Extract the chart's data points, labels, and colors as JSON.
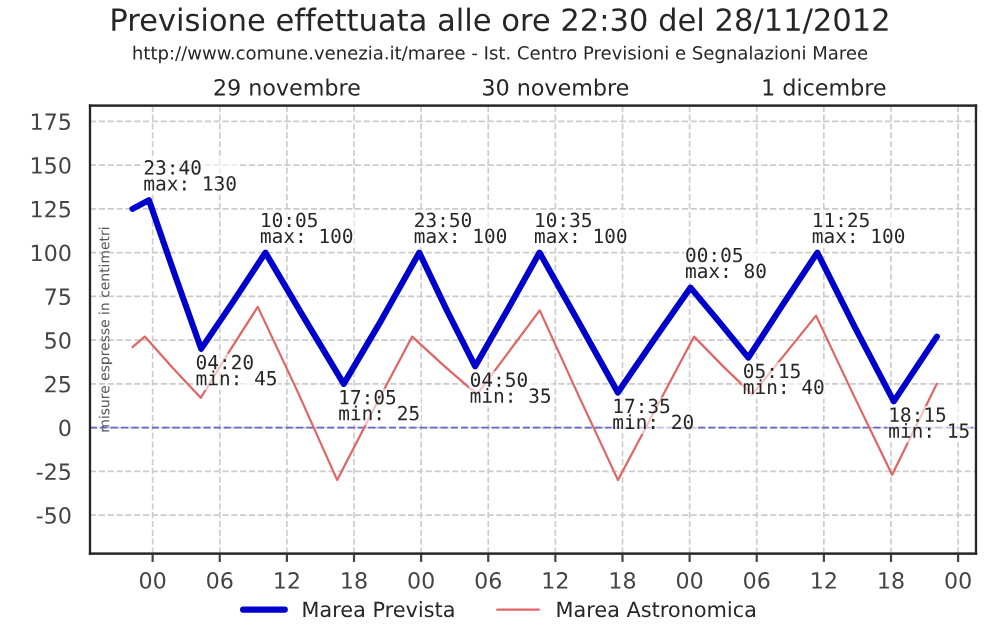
{
  "chart_data": {
    "type": "line",
    "title": "Previsione effettuata alle ore 22:30 del 28/11/2012",
    "subtitle": "http://www.comune.venezia.it/maree - Ist. Centro Previsioni e Segnalazioni Maree",
    "ylabel": "misure espresse in centimetri",
    "xlim": [
      "2012-11-28T18:24",
      "2012-12-02T01:36"
    ],
    "xticks": [
      {
        "value": "2012-11-29T00:00",
        "label": "00"
      },
      {
        "value": "2012-11-29T06:00",
        "label": "06"
      },
      {
        "value": "2012-11-29T12:00",
        "label": "12"
      },
      {
        "value": "2012-11-29T18:00",
        "label": "18"
      },
      {
        "value": "2012-11-30T00:00",
        "label": "00"
      },
      {
        "value": "2012-11-30T06:00",
        "label": "06"
      },
      {
        "value": "2012-11-30T12:00",
        "label": "12"
      },
      {
        "value": "2012-11-30T18:00",
        "label": "18"
      },
      {
        "value": "2012-12-01T00:00",
        "label": "00"
      },
      {
        "value": "2012-12-01T06:00",
        "label": "06"
      },
      {
        "value": "2012-12-01T12:00",
        "label": "12"
      },
      {
        "value": "2012-12-01T18:00",
        "label": "18"
      },
      {
        "value": "2012-12-02T00:00",
        "label": "00"
      }
    ],
    "x2lim": [
      "2012-11-28T18:24",
      "2012-12-02T01:36"
    ],
    "x2ticks": [
      {
        "value": "2012-11-29T12:00",
        "label": "29 novembre"
      },
      {
        "value": "2012-11-30T12:00",
        "label": "30 novembre"
      },
      {
        "value": "2012-12-01T12:00",
        "label": "1 dicembre"
      }
    ],
    "ylim": [
      -72,
      184
    ],
    "yticks": [
      -50,
      -25,
      0,
      25,
      50,
      75,
      100,
      125,
      150,
      175
    ],
    "grid": true,
    "legend": "bottom",
    "marker": "none",
    "line_style": "solid",
    "series": [
      {
        "name": "Marea Prevista",
        "color": "#0000cc",
        "x": [
          "2012-11-28T22:12",
          "2012-11-28T23:40",
          "2012-11-29T02:00",
          "2012-11-29T04:20",
          "2012-11-29T07:12",
          "2012-11-29T10:05",
          "2012-11-29T13:36",
          "2012-11-29T17:05",
          "2012-11-29T20:30",
          "2012-11-29T23:50",
          "2012-11-30T02:18",
          "2012-11-30T04:50",
          "2012-11-30T07:42",
          "2012-11-30T10:35",
          "2012-11-30T14:06",
          "2012-11-30T17:35",
          "2012-11-30T20:48",
          "2012-12-01T00:05",
          "2012-12-01T02:42",
          "2012-12-01T05:15",
          "2012-12-01T08:18",
          "2012-12-01T11:25",
          "2012-12-01T14:48",
          "2012-12-01T18:15",
          "2012-12-01T22:06"
        ],
        "values": [
          125,
          130,
          87,
          45,
          72,
          100,
          62,
          25,
          62,
          100,
          67,
          35,
          67,
          100,
          60,
          20,
          50,
          80,
          60,
          40,
          70,
          100,
          57,
          15,
          52
        ]
      },
      {
        "name": "Marea Astronomica",
        "color": "#e06666",
        "x": [
          "2012-11-28T22:12",
          "2012-11-28T23:18",
          "2012-11-29T01:48",
          "2012-11-29T04:18",
          "2012-11-29T06:48",
          "2012-11-29T09:24",
          "2012-11-29T13:00",
          "2012-11-29T16:30",
          "2012-11-29T19:48",
          "2012-11-29T23:12",
          "2012-11-30T02:06",
          "2012-11-30T05:00",
          "2012-11-30T07:48",
          "2012-11-30T10:36",
          "2012-11-30T14:06",
          "2012-11-30T17:36",
          "2012-11-30T21:00",
          "2012-12-01T00:24",
          "2012-12-01T03:00",
          "2012-12-01T05:36",
          "2012-12-01T08:24",
          "2012-12-01T11:18",
          "2012-12-01T14:42",
          "2012-12-01T18:06",
          "2012-12-01T22:06"
        ],
        "values": [
          46,
          52,
          34,
          17,
          43,
          69,
          20,
          -30,
          11,
          52,
          35,
          19,
          43,
          67,
          18,
          -30,
          11,
          52,
          35,
          19,
          41,
          64,
          18,
          -27,
          25
        ]
      }
    ],
    "ref_lines": [
      {
        "axis": "y",
        "value": 0,
        "color": "#6666cc",
        "line_style": "dashed"
      }
    ],
    "annotations": [
      {
        "text": "23:40\nmax: 130",
        "x": "2012-11-28T23:40",
        "y": 130
      },
      {
        "text": "04:20\nmin: 45",
        "x": "2012-11-29T04:20",
        "y": 45
      },
      {
        "text": "10:05\nmax: 100",
        "x": "2012-11-29T10:05",
        "y": 100
      },
      {
        "text": "17:05\nmin: 25",
        "x": "2012-11-29T17:05",
        "y": 25
      },
      {
        "text": "23:50\nmax: 100",
        "x": "2012-11-29T23:50",
        "y": 100
      },
      {
        "text": "04:50\nmin: 35",
        "x": "2012-11-30T04:50",
        "y": 35
      },
      {
        "text": "10:35\nmax: 100",
        "x": "2012-11-30T10:35",
        "y": 100
      },
      {
        "text": "17:35\nmin: 20",
        "x": "2012-11-30T17:35",
        "y": 20
      },
      {
        "text": "00:05\nmax: 80",
        "x": "2012-12-01T00:05",
        "y": 80
      },
      {
        "text": "05:15\nmin: 40",
        "x": "2012-12-01T05:15",
        "y": 40
      },
      {
        "text": "11:25\nmax: 100",
        "x": "2012-12-01T11:25",
        "y": 100
      },
      {
        "text": "18:15\nmin: 15",
        "x": "2012-12-01T18:15",
        "y": 15
      }
    ]
  }
}
